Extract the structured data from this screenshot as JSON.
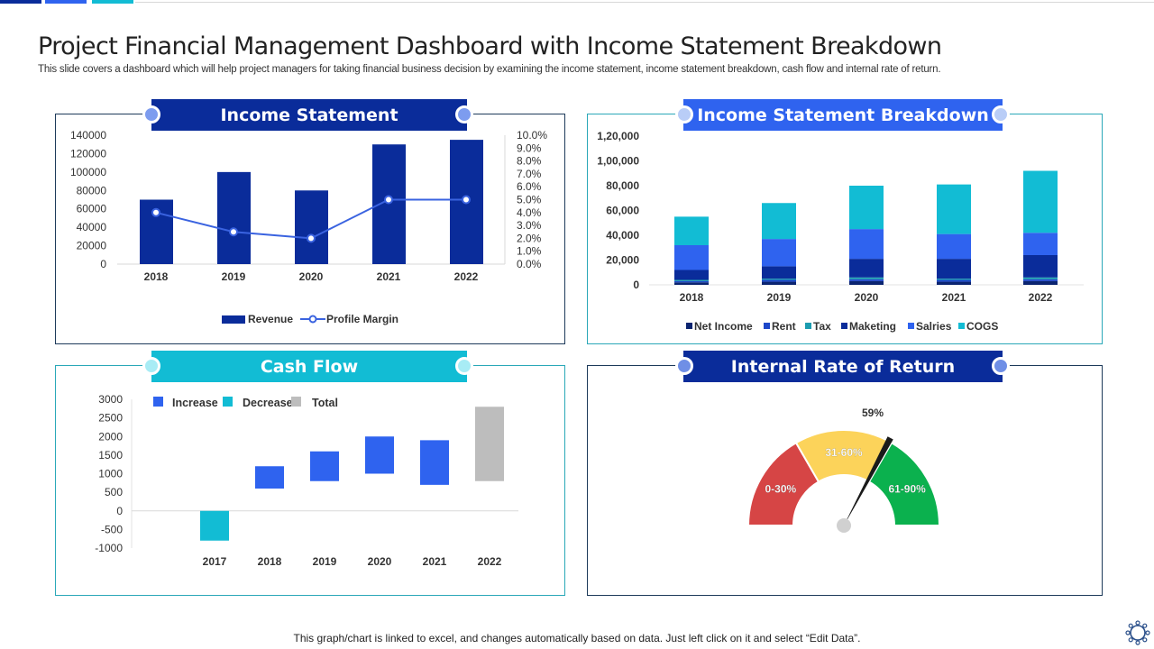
{
  "title": "Project Financial Management Dashboard with Income Statement Breakdown",
  "subtitle": "This slide covers a dashboard which will help project managers for taking financial business decision by examining the income statement, income statement breakdown, cash flow and internal rate of return.",
  "footer": "This graph/chart is linked to excel,  and changes automatically based on data. Just left click on it and select “Edit Data”.",
  "colors": {
    "navy": "#0a2c9a",
    "blue": "#2f63ef",
    "cyan": "#12bcd4",
    "gray": "#bdbdbd",
    "red": "#d64545",
    "yellow": "#fcd35a",
    "green": "#0bb14e"
  },
  "panels": {
    "income": "Income Statement",
    "breakdown": "Income Statement Breakdown",
    "cashflow": "Cash Flow",
    "irr": "Internal Rate of Return"
  },
  "chart_data": [
    {
      "type": "bar",
      "title": "Income Statement",
      "categories": [
        "2018",
        "2019",
        "2020",
        "2021",
        "2022"
      ],
      "series": [
        {
          "name": "Revenue",
          "type": "bar",
          "axis": "left",
          "values": [
            70000,
            100000,
            80000,
            130000,
            135000
          ]
        },
        {
          "name": "Profile Margin",
          "type": "line",
          "axis": "right",
          "values": [
            4.0,
            2.5,
            2.0,
            5.0,
            5.0
          ]
        }
      ],
      "ylim": [
        0,
        140000
      ],
      "yticks": [
        "0",
        "20000",
        "40000",
        "60000",
        "80000",
        "100000",
        "120000",
        "140000"
      ],
      "y2lim": [
        0,
        10
      ],
      "y2ticks": [
        "0.0%",
        "1.0%",
        "2.0%",
        "3.0%",
        "4.0%",
        "5.0%",
        "6.0%",
        "7.0%",
        "8.0%",
        "9.0%",
        "10.0%"
      ],
      "legend": "bottom"
    },
    {
      "type": "bar",
      "stacked": true,
      "title": "Income Statement Breakdown",
      "categories": [
        "2018",
        "2019",
        "2020",
        "2021",
        "2022"
      ],
      "series": [
        {
          "name": "Net Income",
          "values": [
            2000,
            2500,
            3000,
            2500,
            3000
          ]
        },
        {
          "name": "Rent",
          "values": [
            1000,
            1500,
            1500,
            1500,
            1500
          ]
        },
        {
          "name": "Tax",
          "values": [
            1000,
            1000,
            1500,
            1000,
            1500
          ]
        },
        {
          "name": "Maketing",
          "values": [
            8000,
            10000,
            15000,
            16000,
            18000
          ]
        },
        {
          "name": "Salries",
          "values": [
            20000,
            22000,
            24000,
            20000,
            18000
          ]
        },
        {
          "name": "COGS",
          "values": [
            23000,
            29000,
            35000,
            40000,
            50000
          ]
        }
      ],
      "ylim": [
        0,
        120000
      ],
      "yticks": [
        "0",
        "20,000",
        "40,000",
        "60,000",
        "80,000",
        "1,00,000",
        "1,20,000"
      ],
      "legend": "bottom"
    },
    {
      "type": "bar",
      "subtype": "waterfall",
      "title": "Cash Flow",
      "categories": [
        "2017",
        "2018",
        "2019",
        "2020",
        "2021",
        "2022"
      ],
      "series": [
        {
          "name": "Increase",
          "ranges": [
            null,
            [
              600,
              1200
            ],
            [
              800,
              1600
            ],
            [
              1000,
              2000
            ],
            [
              700,
              1900
            ],
            null
          ]
        },
        {
          "name": "Decrease",
          "ranges": [
            [
              -800,
              0
            ],
            null,
            null,
            null,
            null,
            null
          ]
        },
        {
          "name": "Total",
          "ranges": [
            null,
            null,
            null,
            null,
            null,
            [
              800,
              2800
            ]
          ]
        }
      ],
      "ylim": [
        -1000,
        3000
      ],
      "yticks": [
        "-1000",
        "-500",
        "0",
        "500",
        "1000",
        "1500",
        "2000",
        "2500",
        "3000"
      ],
      "legend": "top"
    },
    {
      "type": "gauge",
      "title": "Internal Rate of Return",
      "range": [
        0,
        90
      ],
      "value": 59,
      "value_label": "59%",
      "bands": [
        {
          "label": "0-30%",
          "from": 0,
          "to": 30
        },
        {
          "label": "31-60%",
          "from": 30,
          "to": 60
        },
        {
          "label": "61-90%",
          "from": 60,
          "to": 90
        }
      ]
    }
  ]
}
